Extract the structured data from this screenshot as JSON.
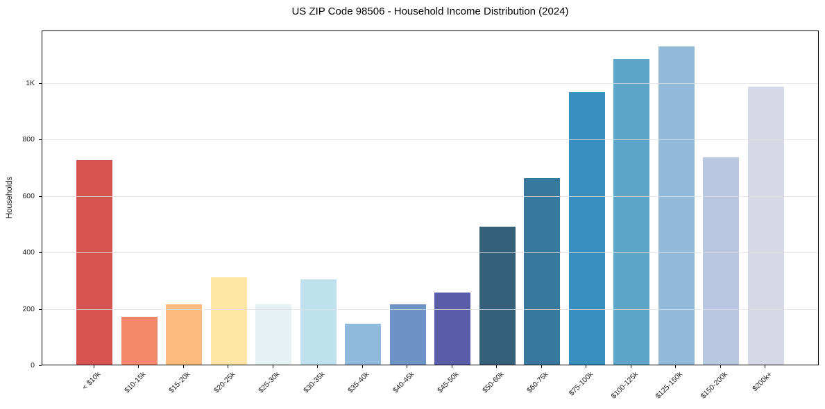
{
  "chart_data": {
    "type": "bar",
    "title": "US ZIP Code 98506 - Household Income Distribution (2024)",
    "xlabel": "",
    "ylabel": "Households",
    "categories": [
      "< $10k",
      "$10-15k",
      "$15-20k",
      "$20-25k",
      "$25-30k",
      "$30-35k",
      "$35-40k",
      "$40-45k",
      "$45-50k",
      "$50-60k",
      "$60-75k",
      "$75-100k",
      "$100-125k",
      "$125-150k",
      "$150-200k",
      "$200k+"
    ],
    "values": [
      725,
      170,
      213,
      310,
      215,
      303,
      145,
      215,
      255,
      490,
      660,
      965,
      1085,
      1128,
      735,
      985
    ],
    "bar_colors": [
      "#d6544f",
      "#f4876a",
      "#fbbb7e",
      "#fde5a4",
      "#e6f1f3",
      "#bee1ed",
      "#8fbadd",
      "#6d92c6",
      "#5a5cab",
      "#35607a",
      "#38789e",
      "#388dc1",
      "#5ca7c9",
      "#92bad8",
      "#b9c8e0",
      "#d6d8e6"
    ],
    "ylim": [
      0,
      1187
    ],
    "yticks": [
      {
        "value": 0,
        "label": "0"
      },
      {
        "value": 200,
        "label": "200"
      },
      {
        "value": 400,
        "label": "400"
      },
      {
        "value": 600,
        "label": "600"
      },
      {
        "value": 800,
        "label": "800"
      },
      {
        "value": 1000,
        "label": "1K"
      }
    ],
    "grid": "horizontal",
    "legend": "none"
  },
  "styles": {
    "background": "#ffffff",
    "spine_color": "#000000",
    "grid_color": "#e0e0e0",
    "text_color": "#1a1a1a",
    "title_color": "#000000"
  }
}
